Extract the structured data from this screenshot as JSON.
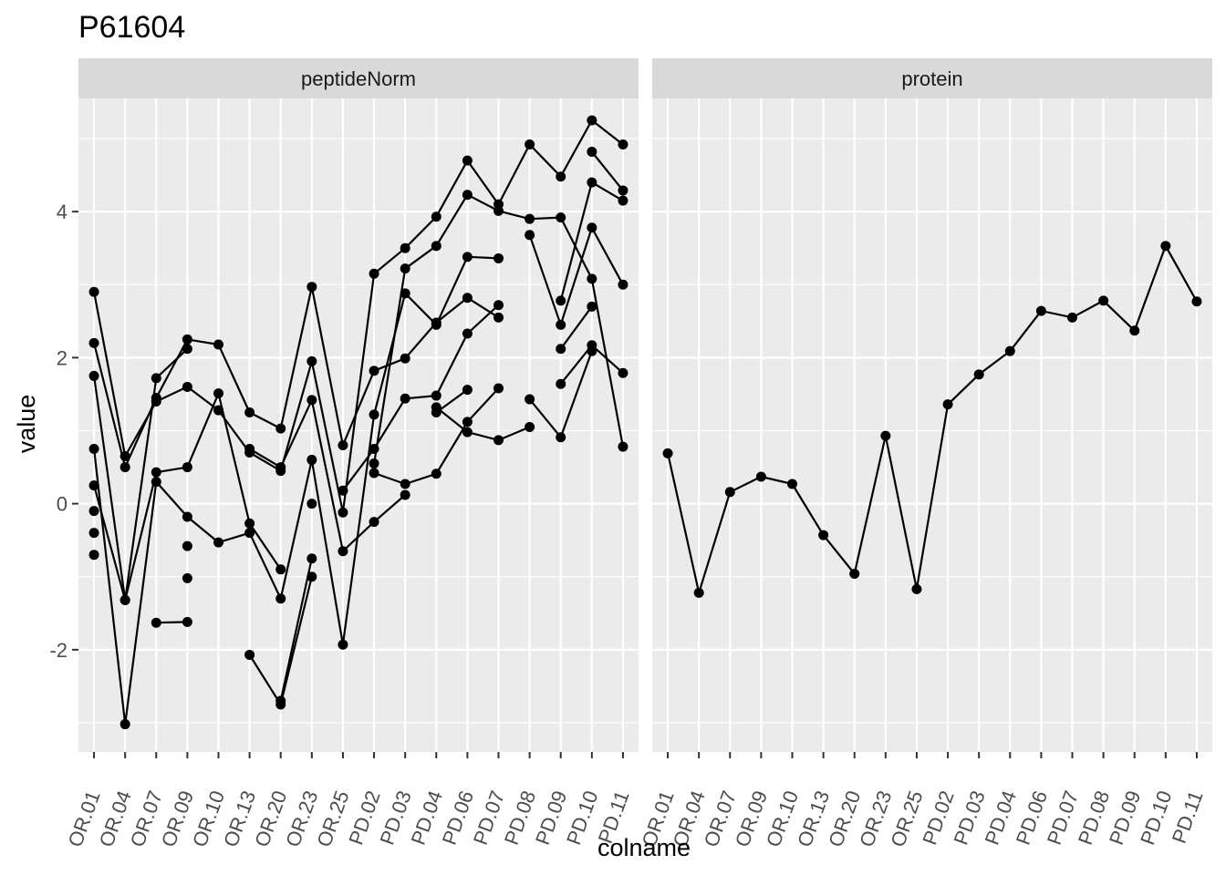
{
  "chart_data": {
    "type": "line",
    "title": "P61604",
    "xlabel": "colname",
    "ylabel": "value",
    "ylim": [
      -3.4,
      5.55
    ],
    "yticks": [
      -2,
      0,
      2,
      4
    ],
    "categories": [
      "OR.01",
      "OR.04",
      "OR.07",
      "OR.09",
      "OR.10",
      "OR.13",
      "OR.20",
      "OR.23",
      "OR.25",
      "PD.02",
      "PD.03",
      "PD.04",
      "PD.06",
      "PD.07",
      "PD.08",
      "PD.09",
      "PD.10",
      "PD.11"
    ],
    "grid": true,
    "colors": {
      "panel_bg": "#ebebeb",
      "strip_bg": "#d9d9d9",
      "grid": "#ffffff",
      "marks": "#000000",
      "tick_label": "#4d4d4d"
    },
    "panels": [
      {
        "label": "peptideNorm",
        "series": [
          {
            "values": [
              2.9,
              0.65,
              1.4,
              1.6,
              1.28,
              0.7,
              0.45,
              1.95,
              -0.12,
              3.15,
              3.5,
              3.93,
              4.7,
              4.1,
              4.92,
              4.48,
              5.25,
              4.92
            ]
          },
          {
            "values": [
              2.2,
              0.5,
              1.45,
              2.25,
              2.18,
              1.25,
              1.03,
              2.97,
              0.8,
              1.82,
              1.99,
              2.48,
              2.82,
              2.55,
              null,
              2.78,
              4.4,
              4.15
            ]
          },
          {
            "values": [
              1.75,
              -1.32,
              1.72,
              2.12,
              null,
              0.75,
              0.5,
              1.42,
              -0.65,
              -0.25,
              0.12,
              null,
              null,
              null,
              3.68,
              2.45,
              3.78,
              3.0
            ]
          },
          {
            "values": [
              0.75,
              -3.02,
              0.3,
              -0.18,
              -0.53,
              -0.4,
              -1.3,
              0.6,
              -1.93,
              1.22,
              2.88,
              2.45,
              3.38,
              3.36,
              null,
              2.12,
              2.7,
              null
            ]
          },
          {
            "values": [
              0.25,
              -1.32,
              0.43,
              0.5,
              1.51,
              -0.27,
              -0.9,
              null,
              0.18,
              0.75,
              1.44,
              1.48,
              2.33,
              2.72,
              null,
              null,
              4.82,
              4.29
            ]
          },
          {
            "values": [
              -0.1,
              null,
              -1.63,
              -1.62,
              null,
              -2.07,
              -2.75,
              -1.0,
              null,
              0.42,
              0.27,
              0.41,
              1.12,
              1.58,
              null,
              1.64,
              2.17,
              1.79
            ]
          },
          {
            "values": [
              -0.4,
              null,
              null,
              -0.58,
              null,
              null,
              -2.7,
              -0.75,
              null,
              0.55,
              3.22,
              3.53,
              4.23,
              4.01,
              3.9,
              3.92,
              3.08,
              0.78
            ]
          },
          {
            "values": [
              -0.7,
              null,
              null,
              -1.02,
              null,
              null,
              null,
              0.0,
              null,
              null,
              null,
              1.25,
              1.56,
              null,
              1.43,
              0.91,
              2.09,
              null
            ]
          },
          {
            "values": [
              null,
              null,
              null,
              null,
              null,
              null,
              null,
              null,
              null,
              null,
              null,
              1.32,
              0.98,
              0.87,
              1.05,
              null,
              null,
              null
            ]
          }
        ]
      },
      {
        "label": "protein",
        "series": [
          {
            "values": [
              0.69,
              -1.22,
              0.16,
              0.37,
              0.27,
              -0.43,
              -0.96,
              0.93,
              -1.17,
              1.36,
              1.77,
              2.09,
              2.64,
              2.55,
              2.78,
              2.37,
              3.53,
              2.77
            ]
          }
        ]
      }
    ]
  }
}
